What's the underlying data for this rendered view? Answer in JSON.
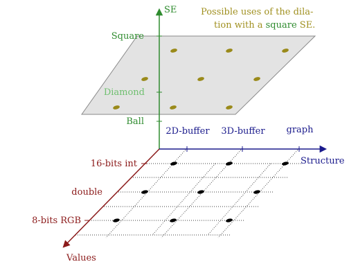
{
  "caption": {
    "line1": "Possible uses of the dila-",
    "line2_pre": "tion with a ",
    "line2_em": "square",
    "line2_post": " SE."
  },
  "axes": {
    "se": "SE",
    "structure": "Structure",
    "values": "Values"
  },
  "se_ticks": {
    "square": "Square",
    "diamond": "Diamond",
    "ball": "Ball"
  },
  "structure_ticks": {
    "buffer2d": "2D-buffer",
    "buffer3d": "3D-buffer",
    "graph": "graph"
  },
  "value_ticks": {
    "int16": "16-bits int",
    "double": "double",
    "rgb8": "8-bits RGB"
  },
  "colors": {
    "se_axis": "#2e8b2e",
    "diamond_label": "#6fbf6f",
    "structure_axis": "#1a1a8c",
    "values_axis": "#8b1a1a",
    "caption": "#a09020",
    "plane_fill": "#d9d9d9",
    "plane_stroke": "#8a8a8a",
    "se_dots": "#9a8a1a",
    "grid_dots": "#000000"
  }
}
